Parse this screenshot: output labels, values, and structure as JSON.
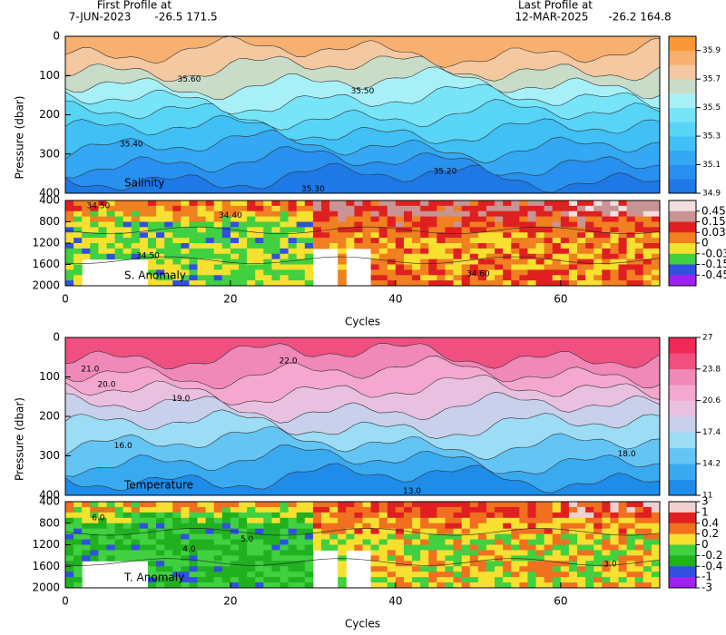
{
  "header": {
    "first_label": "First Profile at",
    "first_date": "7-JUN-2023",
    "first_pos": "-26.5  171.5",
    "last_label": "Last Profile at",
    "last_date": "12-MAR-2025",
    "last_pos": "-26.2  164.8"
  },
  "chart_data": [
    {
      "type": "contour",
      "ylabel": "Pressure (dbar)",
      "label": "Salinity",
      "xlim": [
        0,
        72
      ],
      "ylim": [
        0,
        400
      ],
      "yticks": [
        0,
        100,
        200,
        300,
        400
      ],
      "colorbar": {
        "lim": [
          34.9,
          36.0
        ],
        "ticks": [
          35.9,
          35.7,
          35.5,
          35.3,
          35.1,
          34.9
        ],
        "colors": [
          "#1e78e6",
          "#2890ee",
          "#34a8f2",
          "#40c0f4",
          "#58d4f6",
          "#78e4f8",
          "#a8f0f8",
          "#c8dcc8",
          "#f4c8a0",
          "#f8b070",
          "#f89838"
        ]
      },
      "annotations": [
        {
          "text": "35.60",
          "x": 15,
          "y": 110
        },
        {
          "text": "35.50",
          "x": 36,
          "y": 140
        },
        {
          "text": "35.40",
          "x": 8,
          "y": 275
        },
        {
          "text": "35.30",
          "x": 30,
          "y": 390
        },
        {
          "text": "35.20",
          "x": 46,
          "y": 345
        }
      ]
    },
    {
      "type": "contour",
      "label": "S. Anomaly",
      "xlabel": "Cycles",
      "xlim": [
        0,
        72
      ],
      "xticks": [
        0,
        20,
        40,
        60
      ],
      "ylim": [
        400,
        2000
      ],
      "yticks": [
        400,
        800,
        1200,
        1600,
        2000
      ],
      "colorbar": {
        "labels": [
          0.45,
          0.15,
          0.03,
          0,
          -0.03,
          -0.15,
          -0.45
        ],
        "colors": [
          "#f2dede",
          "#c89494",
          "#e02020",
          "#f08020",
          "#f8e030",
          "#40d040",
          "#3050e0",
          "#a020f0"
        ]
      },
      "annotations": [
        {
          "text": "34.50",
          "x": 4,
          "y": 500
        },
        {
          "text": "34.40",
          "x": 20,
          "y": 680
        },
        {
          "text": "34.50",
          "x": 10,
          "y": 1440
        },
        {
          "text": "34.60",
          "x": 50,
          "y": 1780
        }
      ]
    },
    {
      "type": "contour",
      "ylabel": "Pressure (dbar)",
      "label": "Temperature",
      "xlim": [
        0,
        72
      ],
      "ylim": [
        0,
        400
      ],
      "yticks": [
        0,
        100,
        200,
        300,
        400
      ],
      "colorbar": {
        "lim": [
          11,
          27
        ],
        "ticks": [
          27,
          23.8,
          20.6,
          17.4,
          14.2,
          11
        ],
        "colors": [
          "#1e8ce8",
          "#3aaaf0",
          "#64c4f4",
          "#9cdcf4",
          "#c8d0ec",
          "#e8c0e0",
          "#f4a8d0",
          "#f088b8",
          "#f05080",
          "#f02858"
        ]
      },
      "annotations": [
        {
          "text": "22.0",
          "x": 27,
          "y": 60
        },
        {
          "text": "21.0",
          "x": 3,
          "y": 80
        },
        {
          "text": "20.0",
          "x": 5,
          "y": 120
        },
        {
          "text": "19.0",
          "x": 14,
          "y": 155
        },
        {
          "text": "16.0",
          "x": 7,
          "y": 275
        },
        {
          "text": "18.0",
          "x": 68,
          "y": 295
        },
        {
          "text": "13.0",
          "x": 42,
          "y": 390
        }
      ]
    },
    {
      "type": "contour",
      "label": "T. Anomaly",
      "xlabel": "Cycles",
      "xlim": [
        0,
        72
      ],
      "xticks": [
        0,
        20,
        40,
        60
      ],
      "ylim": [
        400,
        2000
      ],
      "yticks": [
        400,
        800,
        1200,
        1600,
        2000
      ],
      "colorbar": {
        "labels": [
          3,
          1,
          0.4,
          0.2,
          0,
          -0.2,
          -0.4,
          -1,
          -3
        ],
        "colors": [
          "#f0d0d0",
          "#e02020",
          "#f07020",
          "#f8e030",
          "#40d040",
          "#20b020",
          "#3050e0",
          "#a020f0"
        ]
      },
      "annotations": [
        {
          "text": "6.0",
          "x": 4,
          "y": 700
        },
        {
          "text": "5.0",
          "x": 22,
          "y": 1100
        },
        {
          "text": "4.0",
          "x": 15,
          "y": 1280
        },
        {
          "text": "3.0",
          "x": 66,
          "y": 1560
        }
      ]
    }
  ]
}
